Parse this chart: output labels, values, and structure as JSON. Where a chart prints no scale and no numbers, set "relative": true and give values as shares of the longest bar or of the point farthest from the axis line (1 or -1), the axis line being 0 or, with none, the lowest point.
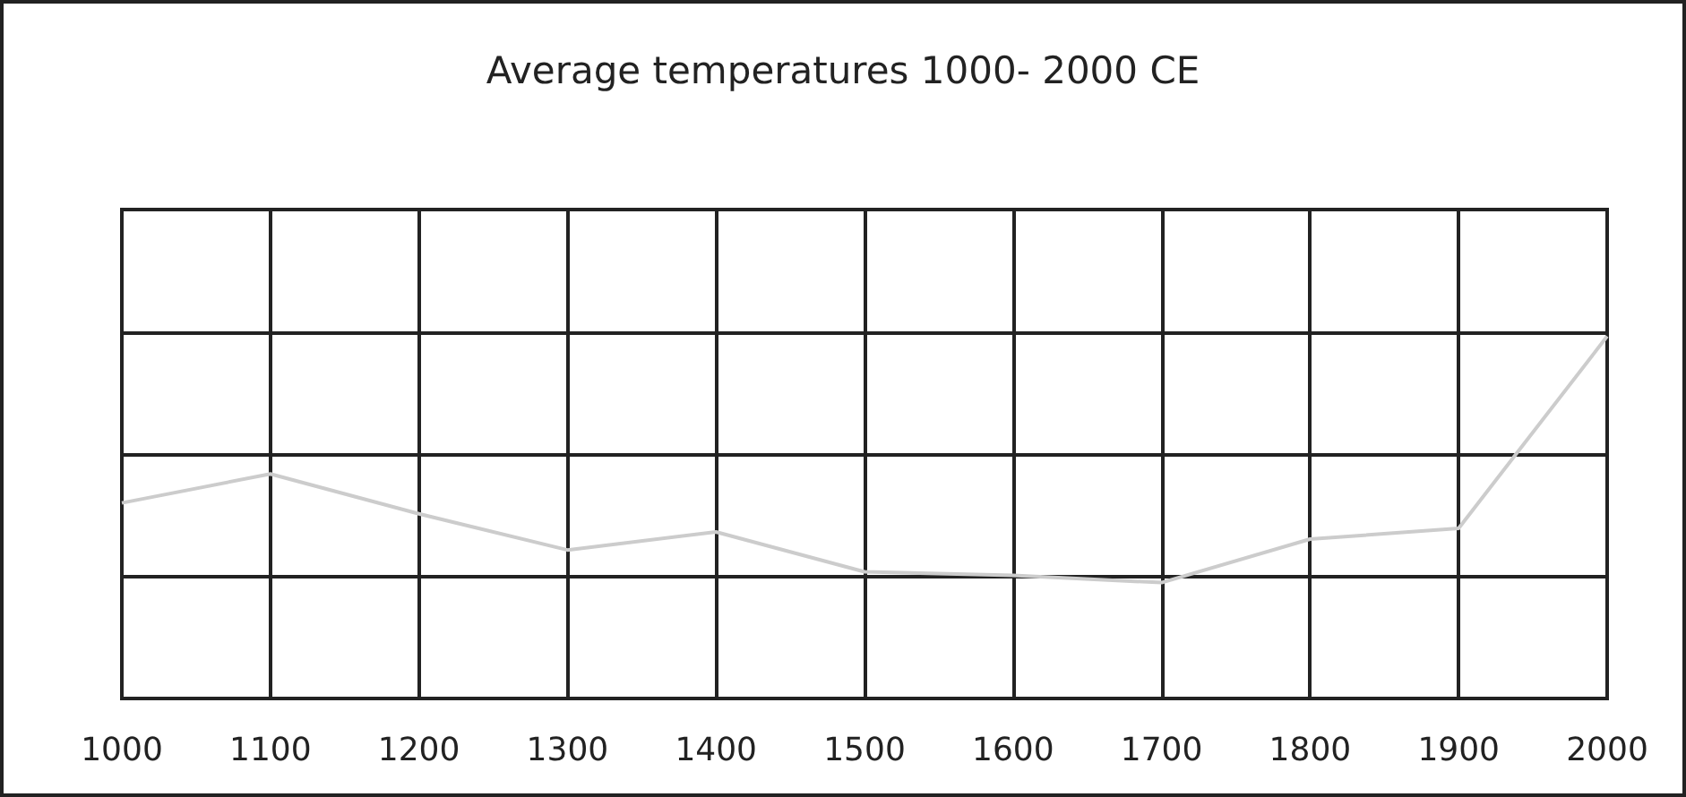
{
  "chart_data": {
    "type": "line",
    "title": "Average temperatures 1000- 2000 CE",
    "relative": true,
    "x": [
      1000,
      1100,
      1200,
      1300,
      1400,
      1500,
      1600,
      1700,
      1800,
      1900,
      2000
    ],
    "values": [
      0.54,
      0.62,
      0.51,
      0.41,
      0.46,
      0.35,
      0.34,
      0.32,
      0.44,
      0.47,
      1
    ],
    "color": "#cccccc",
    "xlim": [
      1000,
      2000
    ],
    "xticks": [
      1000,
      1100,
      1200,
      1300,
      1400,
      1500,
      1600,
      1700,
      1800,
      1900,
      2000
    ],
    "grid": true,
    "marker": "none",
    "line_style": "solid"
  }
}
